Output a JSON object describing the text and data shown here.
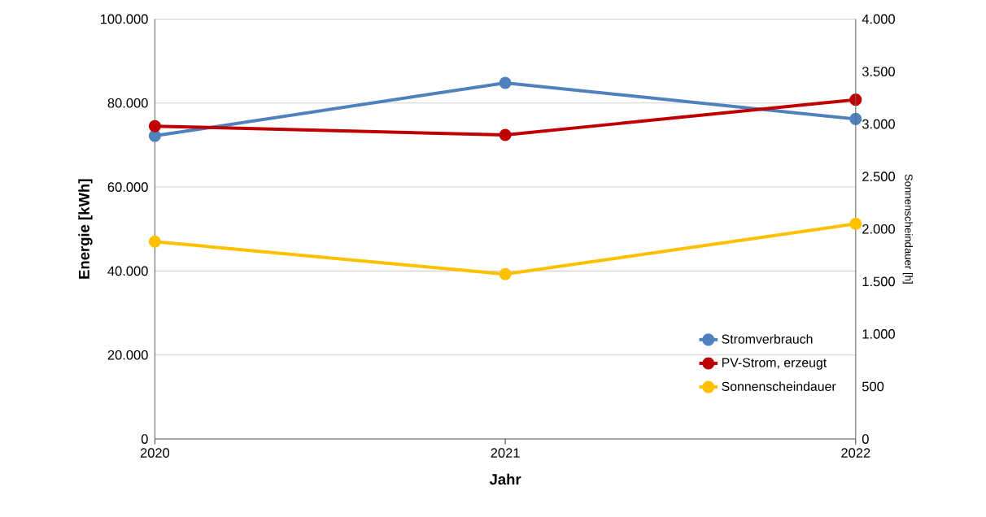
{
  "chart_data": {
    "type": "line",
    "xlabel": "Jahr",
    "ylabel": "Energie [kWh]",
    "y2label": "Sonnenscheindauer [h]",
    "categories": [
      "2020",
      "2021",
      "2022"
    ],
    "series": [
      {
        "name": "Stromverbrauch",
        "color": "#4f81bd",
        "values": [
          72200,
          84800,
          76200
        ]
      },
      {
        "name": "PV-Strom, erzeugt",
        "color": "#c00000",
        "values": [
          74500,
          72400,
          80800
        ]
      },
      {
        "name": "Sonnenscheindauer",
        "color": "#ffc000",
        "values": [
          1880,
          1570,
          2050
        ],
        "axis": "y2"
      }
    ],
    "ylim": [
      0,
      100000
    ],
    "yticks": [
      {
        "value": 0,
        "label": "0"
      },
      {
        "value": 20000,
        "label": "20.000"
      },
      {
        "value": 40000,
        "label": "40.000"
      },
      {
        "value": 60000,
        "label": "60.000"
      },
      {
        "value": 80000,
        "label": "80.000"
      },
      {
        "value": 100000,
        "label": "100.000"
      }
    ],
    "y2lim": [
      0,
      4000
    ],
    "y2ticks": [
      {
        "value": 0,
        "label": "0"
      },
      {
        "value": 500,
        "label": "500"
      },
      {
        "value": 1000,
        "label": "1.000"
      },
      {
        "value": 1500,
        "label": "1.500"
      },
      {
        "value": 2000,
        "label": "2.000"
      },
      {
        "value": 2500,
        "label": "2.500"
      },
      {
        "value": 3000,
        "label": "3.000"
      },
      {
        "value": 3500,
        "label": "3.500"
      },
      {
        "value": 4000,
        "label": "4.000"
      }
    ],
    "grid": "y",
    "legend": "bottom right",
    "marker": "circle",
    "line_style": "solid"
  }
}
